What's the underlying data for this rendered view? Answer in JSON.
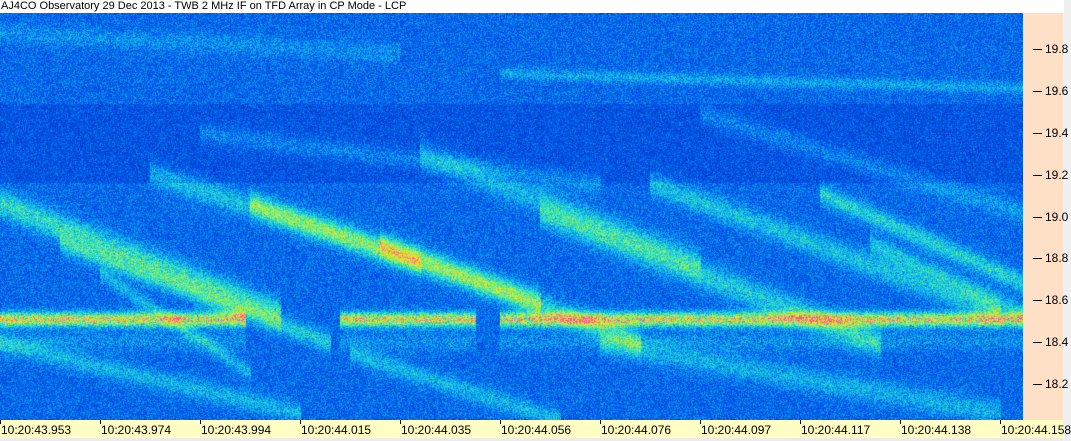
{
  "chart_data": {
    "type": "heatmap",
    "title": "AJ4CO Observatory 29 Dec 2013 - TWB 2 MHz IF on TFD Array in CP Mode - LCP",
    "xlabel": "",
    "ylabel": "",
    "x_tick_labels": [
      "10:20:43.953",
      "10:20:43.974",
      "10:20:43.994",
      "10:20:44.015",
      "10:20:44.035",
      "10:20:44.056",
      "10:20:44.076",
      "10:20:44.097",
      "10:20:44.117",
      "10:20:44.138",
      "10:20:44.158"
    ],
    "y_ticks": [
      19.8,
      19.6,
      19.4,
      19.2,
      19.0,
      18.8,
      18.6,
      18.4,
      18.2
    ],
    "y_tick_labels": [
      "19.8",
      "19.6",
      "19.4",
      "19.2",
      "19.0",
      "18.8",
      "18.6",
      "18.4",
      "18.2"
    ],
    "ylim": [
      18.03,
      19.97
    ],
    "y_axis_position": "right",
    "colormap": [
      "#001a88",
      "#0038cc",
      "#0060ee",
      "#10b0f0",
      "#30e8c0",
      "#b0f040",
      "#f8e020",
      "#ff50a0"
    ],
    "grid": false
  },
  "colors": {
    "title_background": "#ffffff",
    "y_axis_background": "#fde0c6",
    "x_axis_background": "#ffffc4"
  }
}
